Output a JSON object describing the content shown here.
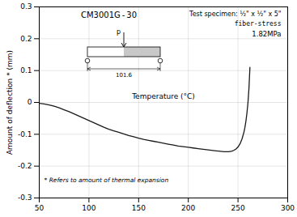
{
  "chart_data": {
    "type": "line",
    "title": "CM3001G - 30",
    "ylabel": "Amount of deflection * (mm)",
    "annotations": [
      "Temperature (°C)",
      "Test specimen: ½\" x ½\" x 5\"",
      "fiber-stress",
      "1.82MPa",
      "p",
      "101.6",
      "* Refers to amount of thermal expansion"
    ],
    "x": [
      50,
      55,
      60,
      65,
      70,
      75,
      80,
      85,
      90,
      95,
      100,
      105,
      110,
      115,
      120,
      125,
      130,
      135,
      140,
      145,
      150,
      155,
      160,
      165,
      170,
      175,
      180,
      185,
      190,
      195,
      200,
      205,
      210,
      215,
      220,
      225,
      228,
      231,
      234,
      237,
      240,
      242,
      244,
      246,
      248,
      250,
      252,
      254,
      256,
      257,
      258,
      259,
      260,
      261,
      262
    ],
    "values": [
      -0.003,
      -0.005,
      -0.008,
      -0.012,
      -0.017,
      -0.023,
      -0.029,
      -0.036,
      -0.043,
      -0.05,
      -0.057,
      -0.064,
      -0.071,
      -0.078,
      -0.084,
      -0.089,
      -0.094,
      -0.099,
      -0.104,
      -0.108,
      -0.112,
      -0.116,
      -0.119,
      -0.122,
      -0.125,
      -0.128,
      -0.131,
      -0.134,
      -0.137,
      -0.139,
      -0.141,
      -0.143,
      -0.145,
      -0.147,
      -0.149,
      -0.151,
      -0.152,
      -0.153,
      -0.154,
      -0.155,
      -0.155,
      -0.154,
      -0.153,
      -0.15,
      -0.146,
      -0.14,
      -0.13,
      -0.115,
      -0.093,
      -0.078,
      -0.058,
      -0.033,
      -0.002,
      0.043,
      0.11
    ],
    "color": "#1a1a1a",
    "xlim": [
      50,
      300
    ],
    "ylim": [
      -0.3,
      0.3
    ],
    "xticks": [
      50,
      100,
      150,
      200,
      250,
      300
    ],
    "yticks": [
      -0.3,
      -0.2,
      -0.1,
      0,
      0.1,
      0.2,
      0.3
    ],
    "grid": true
  }
}
